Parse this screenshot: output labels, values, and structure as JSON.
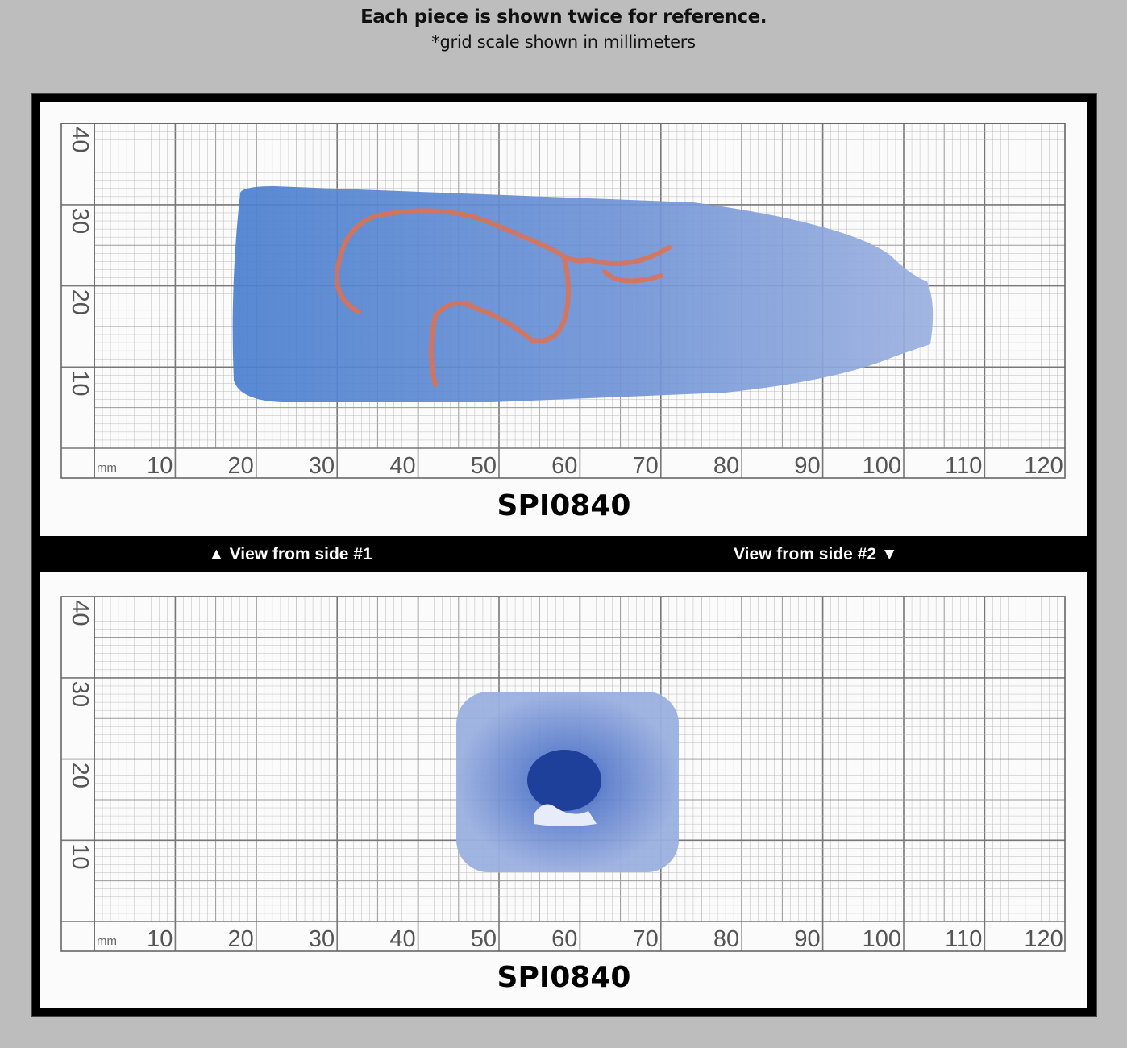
{
  "header": {
    "title": "Each piece is shown twice for reference.",
    "subtitle": "*grid scale shown in millimeters"
  },
  "grid": {
    "unit": "mm",
    "x_labels": [
      "10",
      "20",
      "30",
      "40",
      "50",
      "60",
      "70",
      "80",
      "90",
      "100",
      "110",
      "120"
    ],
    "y_labels": [
      "10",
      "20",
      "30",
      "40"
    ]
  },
  "views": [
    {
      "code": "SPI0840",
      "caption": "▲ View from side #1"
    },
    {
      "code": "SPI0840",
      "caption": "View from side #2 ▼"
    }
  ],
  "colors": {
    "background": "#bdbdbd",
    "frame": "#000000",
    "glass": "#4a7fcf",
    "glass_frosted": "#9bb0e0",
    "marking": "#e0704f"
  }
}
